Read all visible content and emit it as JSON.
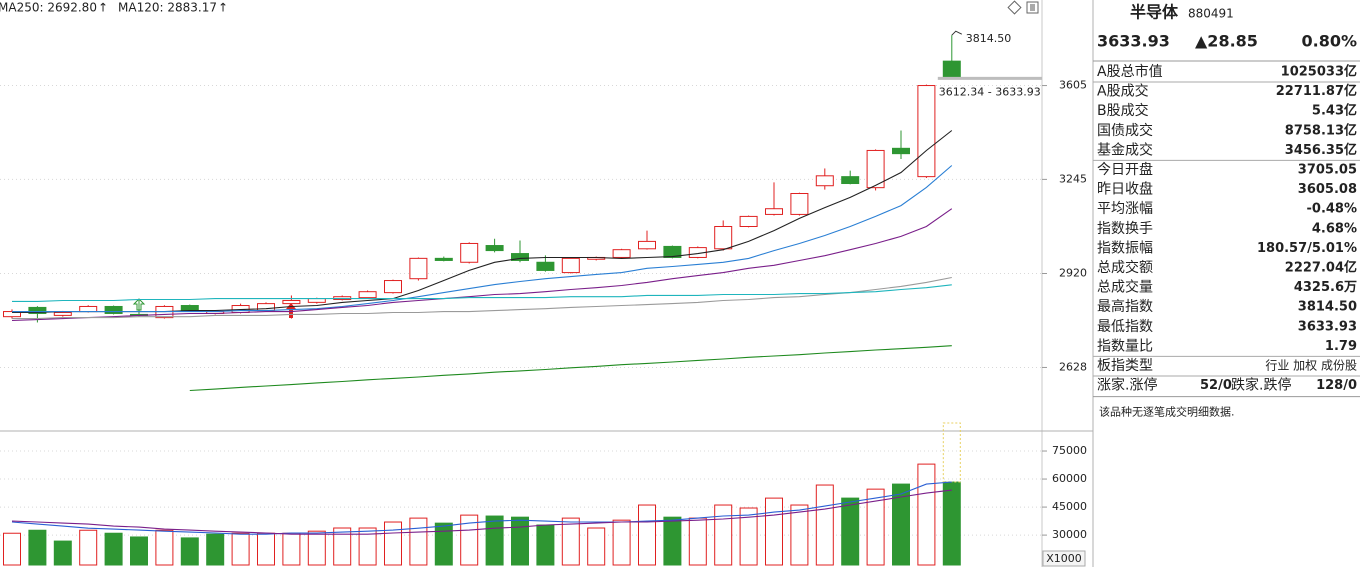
{
  "header": {
    "indicators": [
      {
        "label": "MA250: 2692.80",
        "arrow": "↑",
        "color": "#1f8a1f"
      },
      {
        "label": "MA120: 2883.17",
        "arrow": "↑",
        "color": "#1fb5bd"
      }
    ]
  },
  "chart_data": [
    {
      "type": "candlestick",
      "log": true,
      "grid": true,
      "up_color": "#e02020",
      "down_color": "#2e9632",
      "ylim": [
        2450,
        3968
      ],
      "yticks": [
        2628,
        2920,
        3245,
        3605
      ],
      "open": [
        2782,
        2811,
        2786,
        2798,
        2814,
        2789,
        2779,
        2817,
        2792,
        2795,
        2801,
        2823,
        2827,
        2836,
        2842,
        2858,
        2903,
        2970,
        2957,
        3013,
        2986,
        2957,
        2923,
        2967,
        2973,
        3002,
        3010,
        2973,
        3002,
        3078,
        3120,
        3120,
        3222,
        3255,
        3215,
        3360,
        3255,
        3705.05
      ],
      "close": [
        2798,
        2792,
        2795,
        2814,
        2792,
        2786,
        2814,
        2801,
        2798,
        2817,
        2823,
        2833,
        2839,
        2845,
        2861,
        2897,
        2970,
        2963,
        3020,
        2996,
        2963,
        2930,
        2970,
        2973,
        2999,
        3027,
        2973,
        3006,
        3078,
        3113,
        3140,
        3194,
        3258,
        3230,
        3352,
        3340,
        3605.08,
        3633.93
      ],
      "high": [
        2805,
        2815,
        2800,
        2818,
        2817,
        2836,
        2818,
        2820,
        2801,
        2823,
        2827,
        2849,
        2842,
        2849,
        2865,
        2900,
        2973,
        2976,
        3024,
        3036,
        3030,
        2980,
        2973,
        2976,
        3002,
        3064,
        3013,
        3010,
        3099,
        3116,
        3234,
        3197,
        3285,
        3277,
        3356,
        3428,
        3609,
        3814.5
      ],
      "low": [
        2776,
        2764,
        2782,
        2795,
        2789,
        2782,
        2776,
        2798,
        2789,
        2792,
        2798,
        2776,
        2823,
        2833,
        2839,
        2855,
        2897,
        2960,
        2953,
        2990,
        2957,
        2926,
        2920,
        2963,
        2970,
        2999,
        2970,
        2970,
        2996,
        3075,
        3116,
        3116,
        3208,
        3227,
        3205,
        3320,
        3250,
        3633.93
      ],
      "series": [
        {
          "color": "#222222",
          "values": [
            2795,
            2795,
            2798,
            2798,
            2798,
            2798,
            2798,
            2801,
            2801,
            2804,
            2807,
            2814,
            2817,
            2827,
            2833,
            2839,
            2865,
            2897,
            2930,
            2957,
            2970,
            2973,
            2973,
            2973,
            2970,
            2973,
            2976,
            2986,
            2999,
            3027,
            3064,
            3106,
            3144,
            3180,
            3223,
            3270,
            3352,
            3428
          ]
        },
        {
          "color": "#2a7fd4",
          "values": [
            2798,
            2798,
            2798,
            2798,
            2798,
            2798,
            2798,
            2798,
            2798,
            2801,
            2801,
            2804,
            2807,
            2814,
            2823,
            2833,
            2845,
            2858,
            2871,
            2884,
            2894,
            2903,
            2910,
            2917,
            2923,
            2937,
            2943,
            2950,
            2957,
            2970,
            2996,
            3020,
            3047,
            3078,
            3113,
            3151,
            3216,
            3296
          ]
        },
        {
          "color": "#7a1f8a",
          "values": [
            2770,
            2773,
            2776,
            2779,
            2782,
            2786,
            2789,
            2792,
            2792,
            2795,
            2798,
            2798,
            2804,
            2811,
            2817,
            2827,
            2833,
            2839,
            2845,
            2852,
            2855,
            2861,
            2868,
            2874,
            2881,
            2891,
            2903,
            2913,
            2923,
            2937,
            2947,
            2963,
            2979,
            2999,
            3020,
            3044,
            3078,
            3140
          ]
        },
        {
          "color": "#9a9a9a",
          "values": [
            2776,
            2776,
            2779,
            2779,
            2779,
            2782,
            2782,
            2782,
            2786,
            2786,
            2786,
            2789,
            2789,
            2792,
            2792,
            2795,
            2795,
            2798,
            2798,
            2801,
            2804,
            2807,
            2811,
            2814,
            2817,
            2820,
            2823,
            2827,
            2833,
            2836,
            2842,
            2845,
            2852,
            2858,
            2868,
            2878,
            2891,
            2907
          ]
        },
        {
          "color": "#1fb5bd",
          "values": [
            2830,
            2830,
            2833,
            2833,
            2833,
            2836,
            2836,
            2836,
            2839,
            2839,
            2839,
            2839,
            2839,
            2839,
            2839,
            2839,
            2839,
            2839,
            2842,
            2842,
            2842,
            2842,
            2845,
            2845,
            2845,
            2849,
            2849,
            2849,
            2852,
            2852,
            2852,
            2855,
            2855,
            2858,
            2861,
            2868,
            2874,
            2883.17
          ]
        },
        {
          "color": "#1f8a1f",
          "values": [
            null,
            null,
            null,
            null,
            null,
            null,
            null,
            2561,
            2565,
            2570,
            2574,
            2578,
            2583,
            2587,
            2592,
            2596,
            2600,
            2605,
            2609,
            2614,
            2618,
            2622,
            2627,
            2631,
            2636,
            2640,
            2644,
            2649,
            2653,
            2658,
            2662,
            2666,
            2671,
            2675,
            2680,
            2684,
            2688,
            2692.8
          ]
        }
      ],
      "annotations": [
        {
          "text": "3814.50"
        },
        {
          "text": "3612.34 - 3633.93"
        }
      ]
    },
    {
      "type": "bar",
      "grid": true,
      "up_color": "#e02020",
      "down_color": "#2e9632",
      "projected_color": "#e8d060",
      "ylim": [
        14000,
        90000
      ],
      "yticks": [
        30000,
        45000,
        60000,
        75000
      ],
      "unit_label": "X1000",
      "values": [
        31000,
        32600,
        26800,
        32600,
        31000,
        29000,
        32600,
        28500,
        30500,
        31000,
        31000,
        31000,
        32100,
        33800,
        33800,
        37000,
        39100,
        36400,
        40700,
        40200,
        39600,
        35400,
        39100,
        33800,
        38000,
        46100,
        39600,
        39100,
        46100,
        44500,
        49800,
        46100,
        56800,
        49800,
        54600,
        57300,
        68000,
        58400
      ],
      "up": [
        true,
        false,
        false,
        true,
        false,
        false,
        true,
        false,
        false,
        true,
        true,
        true,
        true,
        true,
        true,
        true,
        true,
        false,
        true,
        false,
        false,
        false,
        true,
        true,
        true,
        true,
        false,
        true,
        true,
        true,
        true,
        true,
        true,
        false,
        true,
        false,
        true,
        false
      ],
      "projected": 90000,
      "series": [
        {
          "color": "#2a5fd4",
          "values": [
            37000,
            35900,
            34800,
            33700,
            33200,
            32700,
            32100,
            31600,
            31100,
            30500,
            30500,
            31100,
            31100,
            31600,
            32100,
            32700,
            33700,
            34800,
            36400,
            37500,
            38000,
            37500,
            37000,
            37000,
            37000,
            37500,
            38000,
            39100,
            40200,
            40700,
            42300,
            43400,
            45500,
            47700,
            49800,
            52000,
            57300,
            58400
          ]
        },
        {
          "color": "#7a1f8a",
          "values": [
            37500,
            37000,
            36400,
            35900,
            34800,
            34300,
            33200,
            32700,
            32100,
            31600,
            31100,
            30500,
            30500,
            30500,
            30500,
            31100,
            31600,
            32100,
            32700,
            33700,
            34300,
            35400,
            35900,
            36400,
            37000,
            37000,
            37500,
            38000,
            38600,
            39600,
            40700,
            42300,
            43900,
            46100,
            48200,
            50400,
            52500,
            54100
          ]
        }
      ]
    }
  ],
  "panel": {
    "name": "半导体",
    "code": "880491",
    "price": "3633.93",
    "change": "▲28.85",
    "pct": "0.80%",
    "rows": [
      {
        "label": "A股总市值",
        "value": "1025033亿"
      },
      {
        "label": "A股成交",
        "value": "22711.87亿"
      },
      {
        "label": "B股成交",
        "value": "5.43亿"
      },
      {
        "label": "国债成交",
        "value": "8758.13亿"
      },
      {
        "label": "基金成交",
        "value": "3456.35亿"
      },
      {
        "label": "今日开盘",
        "value": "3705.05",
        "color": "#e02020"
      },
      {
        "label": "昨日收盘",
        "value": "3605.08"
      },
      {
        "label": "平均涨幅",
        "value": "-0.48%",
        "color": "#1f9a1f"
      },
      {
        "label": "指数换手",
        "value": "4.68%"
      },
      {
        "label": "指数振幅",
        "value": "180.57/5.01%"
      },
      {
        "label": "总成交额",
        "value": "2227.04亿"
      },
      {
        "label": "总成交量",
        "value": "4325.6万"
      },
      {
        "label": "最高指数",
        "value": "3814.50",
        "color": "#e02020"
      },
      {
        "label": "最低指数",
        "value": "3633.93",
        "color": "#e02020"
      },
      {
        "label": "指数量比",
        "value": "1.79",
        "color": "#e02020"
      },
      {
        "label": "板指类型",
        "value": "行业 加权 成份股"
      }
    ],
    "breadth": {
      "up_label": "涨家.涨停",
      "up_value": "52/0",
      "down_label": "跌家.跌停",
      "down_value": "128/0"
    },
    "note": "该品种无逐笔成交明细数据."
  }
}
